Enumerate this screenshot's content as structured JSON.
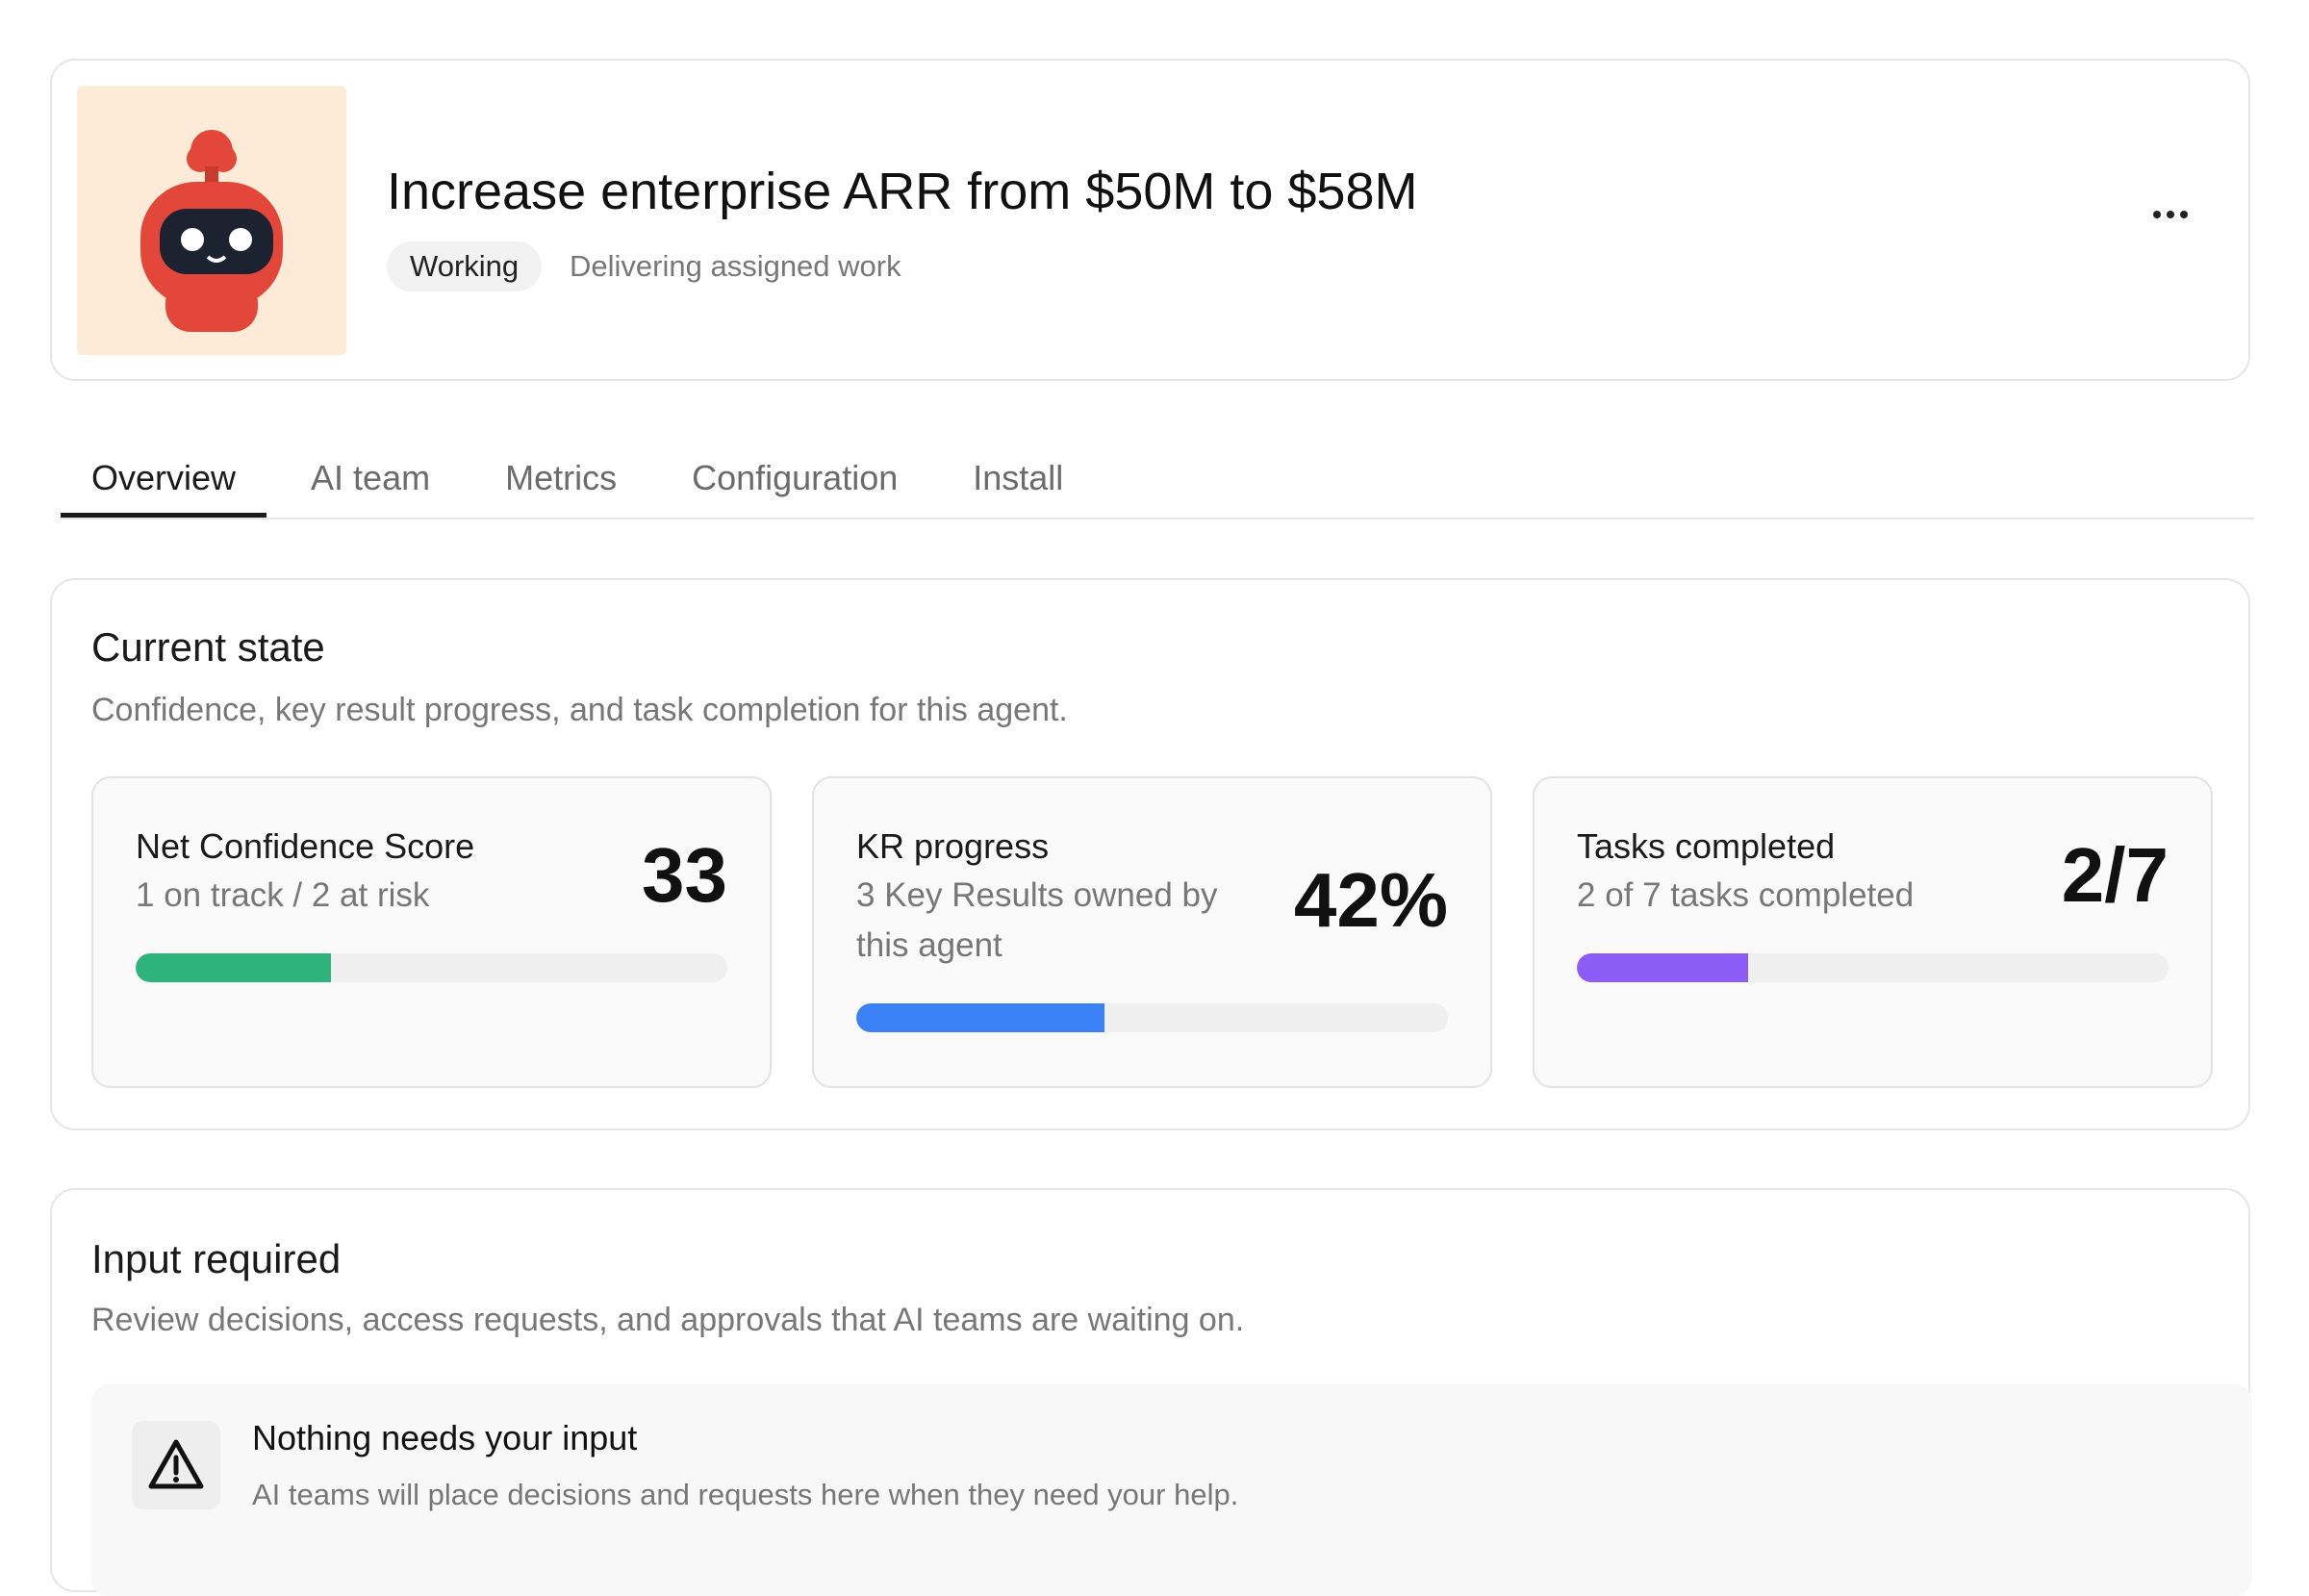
{
  "header": {
    "title": "Increase enterprise ARR from $50M to $58M",
    "status": "Working",
    "status_detail": "Delivering assigned work"
  },
  "tabs": [
    "Overview",
    "AI team",
    "Metrics",
    "Configuration",
    "Install"
  ],
  "active_tab": 0,
  "current_state": {
    "title": "Current state",
    "subtitle": "Confidence, key result progress, and task completion for this agent.",
    "metrics": [
      {
        "title": "Net Confidence Score",
        "subtitle": "1 on track / 2 at risk",
        "value": "33",
        "progress": 33,
        "color": "#2fb37d"
      },
      {
        "title": "KR progress",
        "subtitle": "3 Key Results owned by this agent",
        "value": "42%",
        "progress": 42,
        "color": "#3b82f6"
      },
      {
        "title": "Tasks completed",
        "subtitle": "2 of 7 tasks completed",
        "value": "2/7",
        "progress": 29,
        "color": "#8b5cf6"
      }
    ]
  },
  "input_required": {
    "title": "Input required",
    "subtitle": "Review decisions, access requests, and approvals that AI teams are waiting on.",
    "empty_title": "Nothing needs your input",
    "empty_subtitle": "AI teams will place decisions and requests here when they need your help."
  }
}
